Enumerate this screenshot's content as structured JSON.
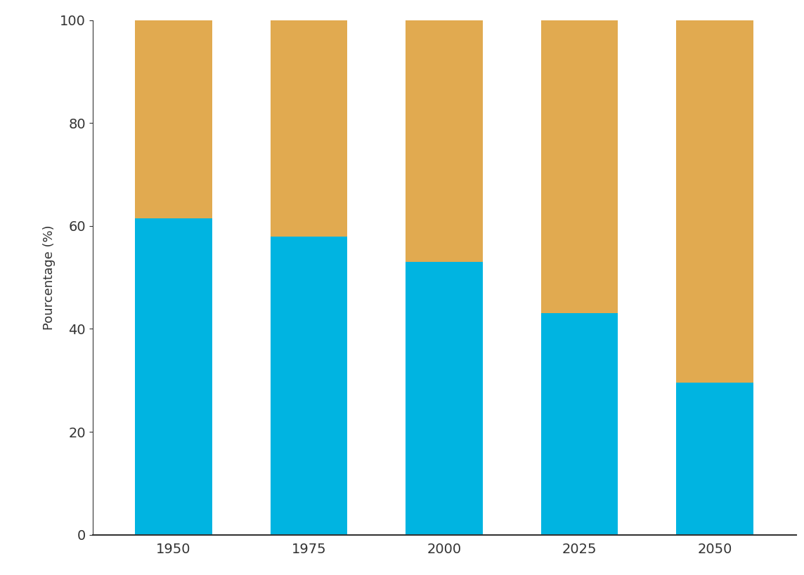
{
  "chart_data": {
    "type": "bar",
    "stacked": true,
    "y_label": "Pourcentage (%)",
    "categories": [
      "1950",
      "1975",
      "2000",
      "2025",
      "2050"
    ],
    "series": [
      {
        "color": "#00b4e1",
        "values": [
          61.5,
          58,
          53,
          43,
          29.5
        ]
      },
      {
        "color": "#e1aa50",
        "values": [
          38.5,
          42,
          47,
          57,
          70.5
        ]
      }
    ],
    "ylim": [
      0,
      100
    ],
    "yticks": [
      0,
      20,
      40,
      60,
      80,
      100
    ],
    "grid": false
  }
}
